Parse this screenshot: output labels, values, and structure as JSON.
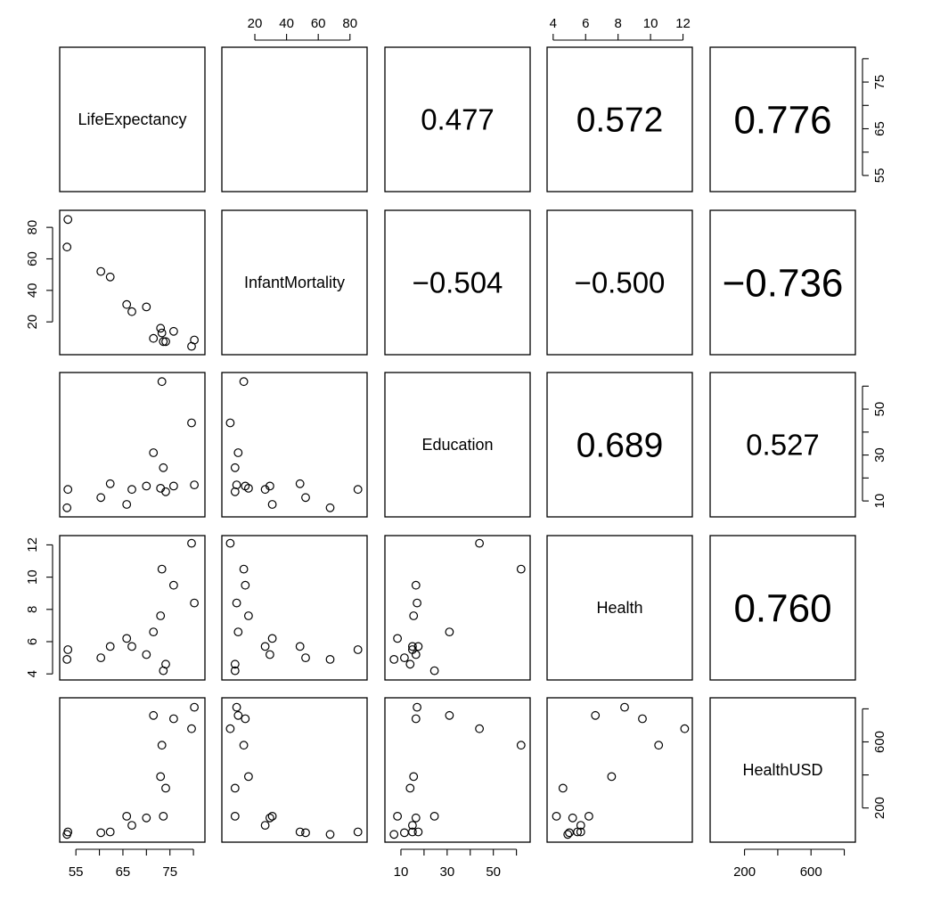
{
  "chart_data": {
    "type": "scatter",
    "variables": [
      "LifeExpectancy",
      "InfantMortality",
      "Education",
      "Health",
      "HealthUSD"
    ],
    "correlations": [
      {
        "row": 0,
        "col": 2,
        "label": "0.477",
        "value": 0.477
      },
      {
        "row": 0,
        "col": 3,
        "label": "0.572",
        "value": 0.572
      },
      {
        "row": 0,
        "col": 4,
        "label": "0.776",
        "value": 0.776
      },
      {
        "row": 1,
        "col": 2,
        "label": "−0.504",
        "value": -0.504
      },
      {
        "row": 1,
        "col": 3,
        "label": "−0.500",
        "value": -0.5
      },
      {
        "row": 1,
        "col": 4,
        "label": "−0.736",
        "value": -0.736
      },
      {
        "row": 2,
        "col": 3,
        "label": "0.689",
        "value": 0.689
      },
      {
        "row": 2,
        "col": 4,
        "label": "0.527",
        "value": 0.527
      },
      {
        "row": 3,
        "col": 4,
        "label": "0.760",
        "value": 0.76
      }
    ],
    "ranges": {
      "LifeExpectancy": [
        52.5,
        81.5
      ],
      "InfantMortality": [
        2,
        88
      ],
      "Education": [
        5,
        64
      ],
      "Health": [
        3.9,
        12.3
      ],
      "HealthUSD": [
        20,
        840
      ]
    },
    "ticks": {
      "LifeExpectancy": [
        55,
        60,
        65,
        70,
        75,
        80
      ],
      "InfantMortality": [
        20,
        40,
        60,
        80
      ],
      "Education": [
        10,
        20,
        30,
        40,
        50,
        60
      ],
      "Health": [
        4,
        6,
        8,
        10,
        12
      ],
      "HealthUSD": [
        200,
        400,
        600,
        800
      ]
    },
    "tick_labels": {
      "LifeExpectancy": [
        "55",
        "65",
        "75"
      ],
      "InfantMortality": [
        "20",
        "40",
        "60",
        "80"
      ],
      "Education": [
        "10",
        "30",
        "50"
      ],
      "Health": [
        "4",
        "6",
        "8",
        "10",
        "12"
      ],
      "HealthUSD": [
        "200",
        "600"
      ]
    },
    "label_positions": {
      "LifeExpectancy": [
        55,
        65,
        75
      ],
      "InfantMortality": [
        20,
        40,
        60,
        80
      ],
      "Education": [
        10,
        30,
        50
      ],
      "Health": [
        4,
        6,
        8,
        10,
        12
      ],
      "HealthUSD": [
        200,
        600
      ]
    },
    "observations": [
      {
        "LifeExpectancy": 53.1,
        "InfantMortality": 67.5,
        "Education": 7.0,
        "Health": 4.9,
        "HealthUSD": 40
      },
      {
        "LifeExpectancy": 53.3,
        "InfantMortality": 85.0,
        "Education": 15.0,
        "Health": 5.5,
        "HealthUSD": 55
      },
      {
        "LifeExpectancy": 60.3,
        "InfantMortality": 52.0,
        "Education": 11.5,
        "Health": 5.0,
        "HealthUSD": 50
      },
      {
        "LifeExpectancy": 62.3,
        "InfantMortality": 48.5,
        "Education": 17.5,
        "Health": 5.7,
        "HealthUSD": 55
      },
      {
        "LifeExpectancy": 65.8,
        "InfantMortality": 31.0,
        "Education": 8.5,
        "Health": 6.2,
        "HealthUSD": 150
      },
      {
        "LifeExpectancy": 66.9,
        "InfantMortality": 26.5,
        "Education": 15.0,
        "Health": 5.7,
        "HealthUSD": 95
      },
      {
        "LifeExpectancy": 70.0,
        "InfantMortality": 29.5,
        "Education": 16.5,
        "Health": 5.2,
        "HealthUSD": 140
      },
      {
        "LifeExpectancy": 71.5,
        "InfantMortality": 9.5,
        "Education": 31.0,
        "Health": 6.6,
        "HealthUSD": 760
      },
      {
        "LifeExpectancy": 73.0,
        "InfantMortality": 16.0,
        "Education": 15.5,
        "Health": 7.6,
        "HealthUSD": 390
      },
      {
        "LifeExpectancy": 73.3,
        "InfantMortality": 13.0,
        "Education": 62.0,
        "Health": 10.5,
        "HealthUSD": 580
      },
      {
        "LifeExpectancy": 73.6,
        "InfantMortality": 7.5,
        "Education": 24.5,
        "Health": 4.2,
        "HealthUSD": 150
      },
      {
        "LifeExpectancy": 74.1,
        "InfantMortality": 7.5,
        "Education": 14.0,
        "Health": 4.6,
        "HealthUSD": 320
      },
      {
        "LifeExpectancy": 75.8,
        "InfantMortality": 14.0,
        "Education": 16.5,
        "Health": 9.5,
        "HealthUSD": 740
      },
      {
        "LifeExpectancy": 79.6,
        "InfantMortality": 4.5,
        "Education": 44.0,
        "Health": 12.1,
        "HealthUSD": 680
      },
      {
        "LifeExpectancy": 80.2,
        "InfantMortality": 8.5,
        "Education": 17.0,
        "Health": 8.4,
        "HealthUSD": 810
      }
    ]
  }
}
